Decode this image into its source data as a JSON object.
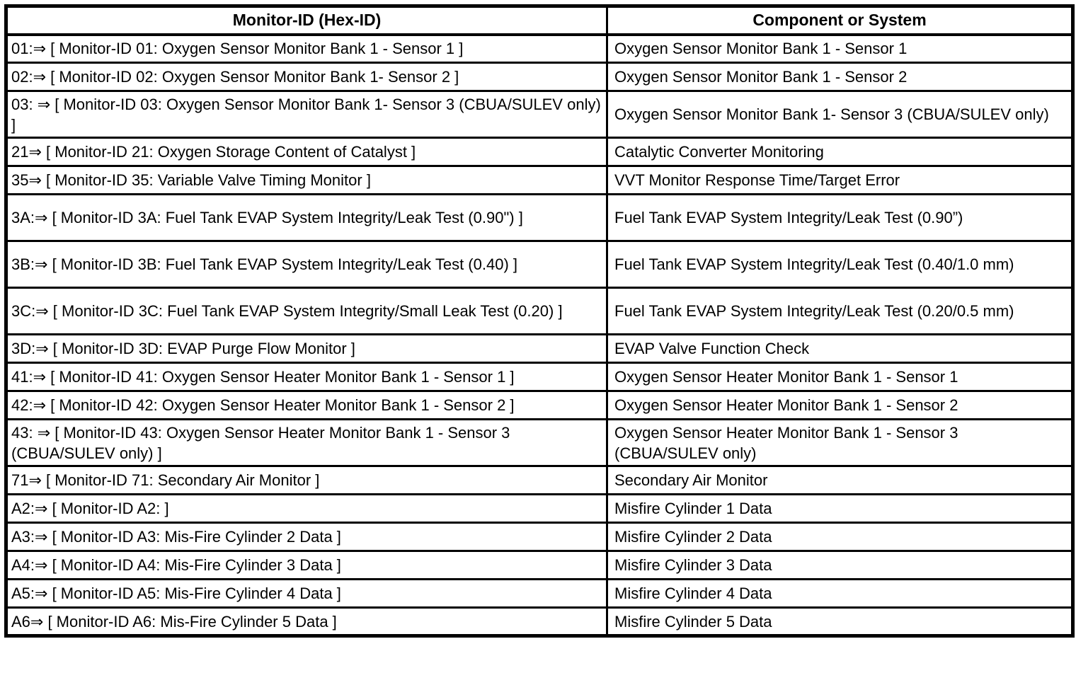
{
  "colors": {
    "border": "#000000",
    "text": "#000000",
    "background": "#ffffff"
  },
  "table": {
    "columns": [
      {
        "label": "Monitor-ID (Hex-ID)"
      },
      {
        "label": "Component or System"
      }
    ],
    "rows": [
      {
        "monitor_id": "01:⇒ [ Monitor-ID 01: Oxygen Sensor Monitor Bank 1 - Sensor 1 ]",
        "component": "Oxygen Sensor Monitor Bank 1 - Sensor 1"
      },
      {
        "monitor_id": "02:⇒ [ Monitor-ID 02: Oxygen Sensor Monitor Bank 1- Sensor 2 ]",
        "component": "Oxygen Sensor Monitor Bank 1 - Sensor 2"
      },
      {
        "monitor_id": "03: ⇒ [ Monitor-ID 03: Oxygen Sensor Monitor Bank 1- Sensor 3 (CBUA/SULEV only) ]",
        "component": "Oxygen Sensor Monitor Bank 1- Sensor 3 (CBUA/SULEV only)"
      },
      {
        "monitor_id": "21⇒ [ Monitor-ID 21: Oxygen Storage Content of Catalyst ]",
        "component": "Catalytic Converter Monitoring"
      },
      {
        "monitor_id": "35⇒ [ Monitor-ID 35: Variable Valve Timing Monitor ]",
        "component": "VVT Monitor Response Time/Target Error"
      },
      {
        "monitor_id": "3A:⇒ [ Monitor-ID 3A: Fuel Tank EVAP System Integrity/Leak Test (0.90\") ]",
        "component": "Fuel Tank EVAP System Integrity/Leak Test (0.90”)"
      },
      {
        "monitor_id": "3B:⇒ [ Monitor-ID 3B: Fuel Tank EVAP System Integrity/Leak Test (0.40) ]",
        "component": "Fuel Tank EVAP System Integrity/Leak Test (0.40/1.0 mm)"
      },
      {
        "monitor_id": "3C:⇒ [ Monitor-ID 3C: Fuel Tank EVAP System Integrity/Small Leak Test (0.20) ]",
        "component": "Fuel Tank EVAP System Integrity/Leak Test (0.20/0.5 mm)"
      },
      {
        "monitor_id": "3D:⇒ [ Monitor-ID 3D: EVAP Purge Flow Monitor ]",
        "component": "EVAP Valve Function Check"
      },
      {
        "monitor_id": "41:⇒ [ Monitor-ID 41: Oxygen Sensor Heater Monitor Bank 1 - Sensor 1 ]",
        "component": "Oxygen Sensor Heater Monitor Bank 1 - Sensor 1"
      },
      {
        "monitor_id": "42:⇒ [ Monitor-ID 42: Oxygen Sensor Heater Monitor Bank 1 - Sensor 2 ]",
        "component": "Oxygen Sensor Heater Monitor Bank 1 - Sensor 2"
      },
      {
        "monitor_id": "43: ⇒ [ Monitor-ID 43: Oxygen Sensor Heater Monitor Bank 1 - Sensor 3 (CBUA/SULEV only) ]",
        "component": "Oxygen Sensor Heater Monitor Bank 1 - Sensor 3 (CBUA/SULEV only)"
      },
      {
        "monitor_id": "71⇒ [ Monitor-ID 71: Secondary Air Monitor ]",
        "component": "Secondary Air Monitor"
      },
      {
        "monitor_id": "A2:⇒ [ Monitor-ID A2: ]",
        "component": "Misfire Cylinder 1 Data"
      },
      {
        "monitor_id": "A3:⇒ [ Monitor-ID A3: Mis-Fire Cylinder 2 Data ]",
        "component": "Misfire Cylinder 2 Data"
      },
      {
        "monitor_id": "A4:⇒ [ Monitor-ID A4: Mis-Fire Cylinder 3 Data ]",
        "component": "Misfire Cylinder 3 Data"
      },
      {
        "monitor_id": "A5:⇒ [ Monitor-ID A5: Mis-Fire Cylinder 4 Data ]",
        "component": "Misfire Cylinder 4 Data"
      },
      {
        "monitor_id": "A6⇒ [ Monitor-ID A6: Mis-Fire Cylinder 5 Data ]",
        "component": "Misfire Cylinder 5 Data"
      }
    ]
  }
}
